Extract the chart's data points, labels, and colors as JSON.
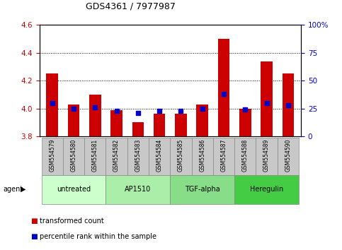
{
  "title": "GDS4361 / 7977987",
  "categories": [
    "GSM554579",
    "GSM554580",
    "GSM554581",
    "GSM554582",
    "GSM554583",
    "GSM554584",
    "GSM554585",
    "GSM554586",
    "GSM554587",
    "GSM554588",
    "GSM554589",
    "GSM554590"
  ],
  "red_values": [
    4.25,
    4.03,
    4.1,
    3.99,
    3.9,
    3.96,
    3.96,
    4.03,
    4.5,
    4.0,
    4.34,
    4.25
  ],
  "blue_pct": [
    30,
    25,
    26,
    23,
    21,
    23,
    23,
    25,
    38,
    24,
    30,
    28
  ],
  "ylim_left": [
    3.8,
    4.6
  ],
  "ylim_right": [
    0,
    100
  ],
  "yticks_left": [
    3.8,
    4.0,
    4.2,
    4.4,
    4.6
  ],
  "yticks_right": [
    0,
    25,
    50,
    75,
    100
  ],
  "groups": [
    {
      "label": "untreated",
      "start": 0,
      "end": 2,
      "color": "#ccffcc"
    },
    {
      "label": "AP1510",
      "start": 3,
      "end": 5,
      "color": "#aaeeaa"
    },
    {
      "label": "TGF-alpha",
      "start": 6,
      "end": 8,
      "color": "#88dd88"
    },
    {
      "label": "Heregulin",
      "start": 9,
      "end": 11,
      "color": "#44cc44"
    }
  ],
  "bar_color": "#cc0000",
  "dot_color": "#0000cc",
  "bg_color": "#c8c8c8",
  "plot_bg": "#ffffff",
  "left_tick_color": "#cc0000",
  "right_tick_color": "#0000cc",
  "legend_red": "transformed count",
  "legend_blue": "percentile rank within the sample",
  "agent_label": "agent"
}
